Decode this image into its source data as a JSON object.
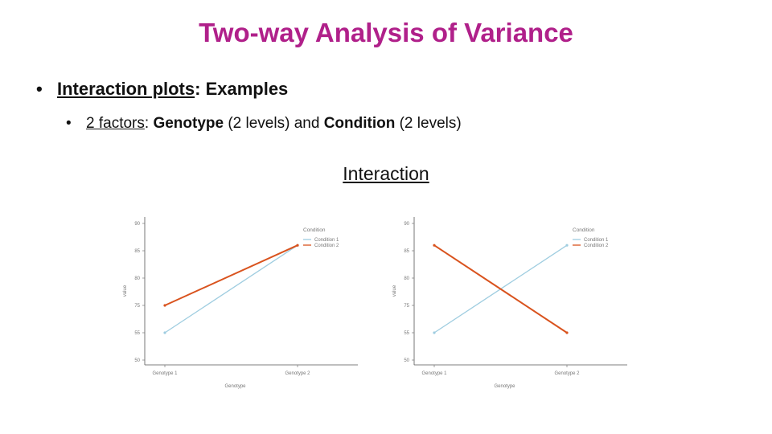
{
  "slide": {
    "title": "Two-way Analysis of Variance",
    "bullet1": {
      "label": "Interaction plots",
      "rest": ": Examples"
    },
    "bullet2": {
      "label": "2 factors",
      "sep": ": ",
      "factor1": "Genotype",
      "factor1_levels": " (2 levels) and ",
      "factor2": "Condition",
      "factor2_levels": " (2 levels)"
    },
    "section_label": "Interaction"
  },
  "chart_data": [
    {
      "type": "line",
      "x": [
        "Genotype 1",
        "Genotype 2"
      ],
      "xlabel": "Genotype",
      "ylabel": "value",
      "y_ticks": [
        50,
        55,
        75,
        80,
        85,
        90
      ],
      "ylim": [
        50,
        90
      ],
      "grid": false,
      "legend": {
        "title": "Condition",
        "placement": "top-right"
      },
      "series": [
        {
          "name": "Condition 1",
          "values": [
            55,
            86
          ],
          "color": "#9fcde0"
        },
        {
          "name": "Condition 2",
          "values": [
            75,
            86
          ],
          "color": "#d9531e"
        }
      ]
    },
    {
      "type": "line",
      "x": [
        "Genotype 1",
        "Genotype 2"
      ],
      "xlabel": "Genotype",
      "ylabel": "value",
      "y_ticks": [
        50,
        55,
        75,
        80,
        85,
        90
      ],
      "ylim": [
        50,
        90
      ],
      "grid": false,
      "legend": {
        "title": "Condition",
        "placement": "top-right"
      },
      "series": [
        {
          "name": "Condition 1",
          "values": [
            55,
            86
          ],
          "color": "#9fcde0"
        },
        {
          "name": "Condition 2",
          "values": [
            86,
            55
          ],
          "color": "#d9531e"
        }
      ]
    }
  ]
}
